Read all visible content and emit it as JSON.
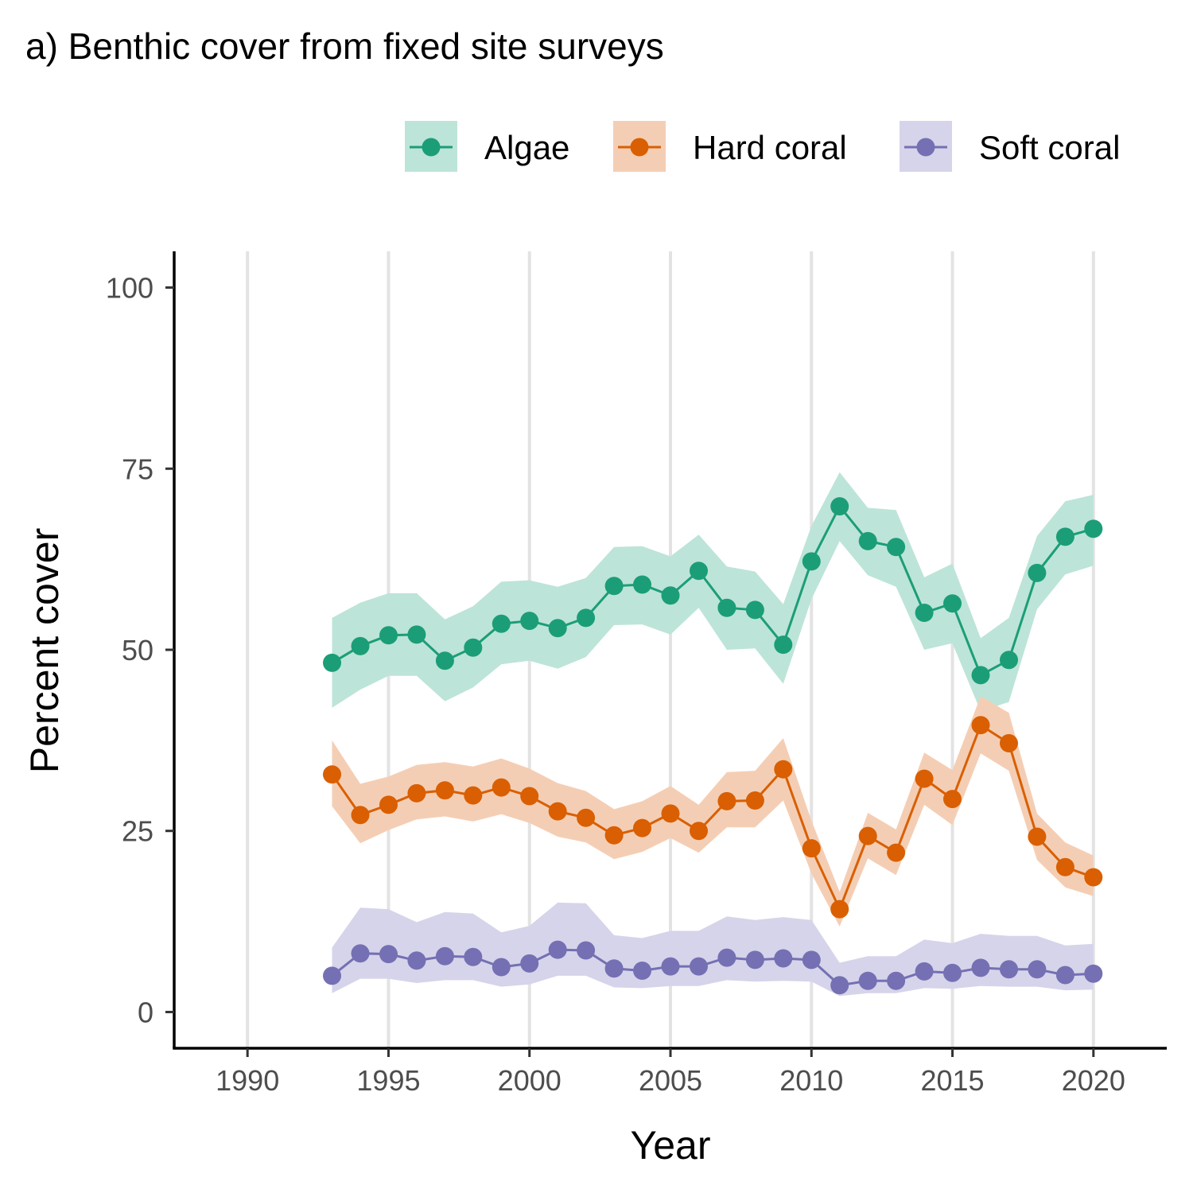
{
  "chart_data": {
    "type": "line",
    "title": "a) Benthic cover from fixed site surveys",
    "xlabel": "Year",
    "ylabel": "Percent cover",
    "xlim": [
      1987.4,
      2022.6
    ],
    "ylim": [
      -5,
      105
    ],
    "x_ticks": [
      1990,
      1995,
      2000,
      2005,
      2010,
      2015,
      2020
    ],
    "y_ticks": [
      0,
      25,
      50,
      75,
      100
    ],
    "grid": "vertical-major",
    "legend_position": "top-right",
    "x": [
      1993,
      1994,
      1995,
      1996,
      1997,
      1998,
      1999,
      2000,
      2001,
      2002,
      2003,
      2004,
      2005,
      2006,
      2007,
      2008,
      2009,
      2010,
      2011,
      2012,
      2013,
      2014,
      2015,
      2016,
      2017,
      2018,
      2019,
      2020
    ],
    "series": [
      {
        "name": "Algae",
        "color": "#1b9e77",
        "fill": "#bde4d8",
        "values": [
          48.2,
          50.5,
          52.0,
          52.1,
          48.5,
          50.3,
          53.6,
          54.0,
          53.0,
          54.4,
          58.8,
          59.0,
          57.5,
          60.9,
          55.8,
          55.5,
          50.7,
          62.2,
          69.8,
          65.0,
          64.2,
          55.1,
          56.4,
          46.5,
          48.6,
          60.6,
          65.6,
          66.7
        ],
        "lower": [
          42.0,
          44.5,
          46.4,
          46.4,
          42.9,
          44.8,
          48.0,
          48.5,
          47.4,
          49.0,
          53.4,
          53.5,
          52.1,
          55.8,
          50.0,
          50.2,
          45.3,
          57.0,
          65.0,
          60.3,
          58.7,
          50.0,
          50.9,
          41.5,
          42.8,
          55.6,
          60.4,
          61.6
        ],
        "upper": [
          54.4,
          56.5,
          57.8,
          57.8,
          54.2,
          56.0,
          59.4,
          59.6,
          58.7,
          59.9,
          64.2,
          64.3,
          62.9,
          65.9,
          61.5,
          60.8,
          56.3,
          67.1,
          74.5,
          69.6,
          69.3,
          60.0,
          61.9,
          51.6,
          54.4,
          65.7,
          70.5,
          71.4
        ]
      },
      {
        "name": "Hard coral",
        "color": "#d95f02",
        "fill": "#f4ceb4",
        "values": [
          32.8,
          27.2,
          28.6,
          30.2,
          30.6,
          29.9,
          31.0,
          29.8,
          27.7,
          26.8,
          24.4,
          25.4,
          27.4,
          25.0,
          29.1,
          29.2,
          33.5,
          22.6,
          14.2,
          24.3,
          22.0,
          32.2,
          29.4,
          39.6,
          37.1,
          24.2,
          20.0,
          18.6
        ],
        "lower": [
          28.4,
          23.3,
          25.1,
          26.6,
          27.0,
          26.3,
          27.3,
          26.1,
          24.2,
          23.4,
          21.1,
          22.1,
          24.0,
          22.0,
          25.5,
          25.5,
          29.2,
          19.1,
          11.8,
          21.2,
          18.9,
          28.6,
          25.8,
          35.7,
          33.3,
          21.0,
          17.2,
          16.0
        ],
        "upper": [
          37.5,
          31.5,
          32.5,
          34.1,
          34.5,
          33.9,
          35.0,
          33.6,
          31.6,
          30.5,
          28.0,
          29.1,
          31.2,
          28.6,
          33.1,
          33.3,
          37.8,
          26.4,
          16.6,
          27.5,
          25.2,
          35.8,
          33.4,
          43.6,
          41.3,
          27.4,
          23.4,
          21.6
        ]
      },
      {
        "name": "Soft coral",
        "color": "#7570b3",
        "fill": "#d6d4ea",
        "values": [
          5.0,
          8.1,
          8.0,
          7.1,
          7.7,
          7.6,
          6.2,
          6.7,
          8.6,
          8.5,
          6.0,
          5.7,
          6.3,
          6.3,
          7.5,
          7.2,
          7.4,
          7.2,
          3.7,
          4.3,
          4.3,
          5.6,
          5.4,
          6.1,
          5.9,
          5.9,
          5.1,
          5.3
        ],
        "lower": [
          2.6,
          4.6,
          4.6,
          4.0,
          4.4,
          4.4,
          3.5,
          3.8,
          5.0,
          5.0,
          3.4,
          3.3,
          3.6,
          3.6,
          4.4,
          4.2,
          4.3,
          4.2,
          2.2,
          2.6,
          2.6,
          3.3,
          3.2,
          3.6,
          3.5,
          3.5,
          3.0,
          3.1
        ],
        "upper": [
          8.9,
          14.4,
          14.2,
          12.4,
          13.8,
          13.6,
          11.0,
          11.9,
          15.1,
          15.0,
          10.6,
          10.2,
          11.2,
          11.2,
          13.2,
          12.7,
          13.1,
          12.7,
          6.8,
          7.7,
          7.7,
          10.0,
          9.5,
          10.8,
          10.5,
          10.5,
          9.2,
          9.4
        ]
      }
    ]
  }
}
